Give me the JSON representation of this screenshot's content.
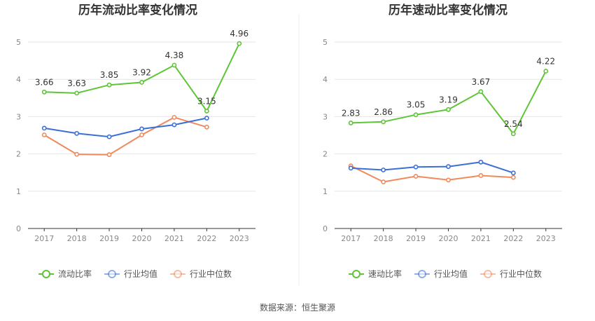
{
  "source_text": "数据来源：恒生聚源",
  "colors": {
    "primary": "#5ec536",
    "avg": "#3a6fd8",
    "median": "#f08a5d",
    "grid": "#e6e6e6",
    "axis": "#333333"
  },
  "chart_data": [
    {
      "type": "line",
      "title": "历年流动比率变化情况",
      "xlabel": "",
      "ylabel": "",
      "categories": [
        "2017",
        "2018",
        "2019",
        "2020",
        "2021",
        "2022",
        "2023"
      ],
      "yticks": [
        "0",
        "1",
        "2",
        "3",
        "4",
        "5"
      ],
      "ylim": [
        0,
        5
      ],
      "grid": true,
      "legend_position": "bottom",
      "series": [
        {
          "name": "流动比率",
          "values": [
            3.66,
            3.63,
            3.85,
            3.92,
            4.38,
            3.15,
            4.96
          ],
          "labels": [
            "3.66",
            "3.63",
            "3.85",
            "3.92",
            "4.38",
            "3.15",
            "4.96"
          ]
        },
        {
          "name": "行业均值",
          "values": [
            2.69,
            2.55,
            2.46,
            2.67,
            2.78,
            2.96,
            null
          ]
        },
        {
          "name": "行业中位数",
          "values": [
            2.51,
            1.99,
            1.98,
            2.51,
            2.98,
            2.72,
            null
          ]
        }
      ]
    },
    {
      "type": "line",
      "title": "历年速动比率变化情况",
      "xlabel": "",
      "ylabel": "",
      "categories": [
        "2017",
        "2018",
        "2019",
        "2020",
        "2021",
        "2022",
        "2023"
      ],
      "yticks": [
        "0",
        "1",
        "2",
        "3",
        "4",
        "5"
      ],
      "ylim": [
        0,
        5
      ],
      "grid": true,
      "legend_position": "bottom",
      "series": [
        {
          "name": "速动比率",
          "values": [
            2.83,
            2.86,
            3.05,
            3.19,
            3.67,
            2.54,
            4.22
          ],
          "labels": [
            "2.83",
            "2.86",
            "3.05",
            "3.19",
            "3.67",
            "2.54",
            "4.22"
          ]
        },
        {
          "name": "行业均值",
          "values": [
            1.62,
            1.57,
            1.65,
            1.66,
            1.78,
            1.49,
            null
          ]
        },
        {
          "name": "行业中位数",
          "values": [
            1.68,
            1.25,
            1.4,
            1.3,
            1.42,
            1.37,
            null
          ]
        }
      ]
    }
  ]
}
